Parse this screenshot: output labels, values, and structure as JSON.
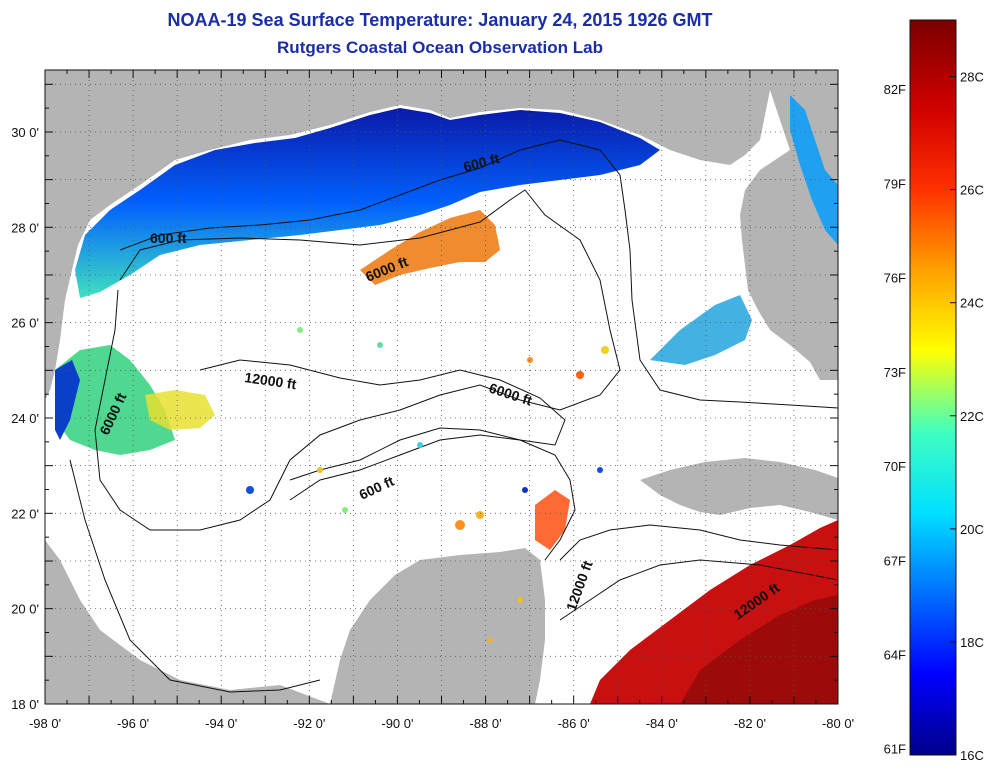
{
  "title": "NOAA-19 Sea Surface Temperature:  January 24, 2015 1926 GMT",
  "subtitle": "Rutgers Coastal Ocean Observation Lab",
  "longitude_labels": [
    "-98 0'",
    "-96 0'",
    "-94 0'",
    "-92 0'",
    "-90 0'",
    "-88 0'",
    "-86 0'",
    "-84 0'",
    "-82 0'",
    "-80 0'"
  ],
  "latitude_labels": [
    "30 0'",
    "28 0'",
    "26 0'",
    "24 0'",
    "22 0'",
    "20 0'",
    "18 0'"
  ],
  "longitude_values": [
    -98,
    -96,
    -94,
    -92,
    -90,
    -88,
    -86,
    -84,
    -82,
    -80
  ],
  "latitude_values": [
    30,
    28,
    26,
    24,
    22,
    20,
    18
  ],
  "contour_labels": {
    "c600_north": "600 ft",
    "c600_west": "600 ft",
    "c6000_north": "6000 ft",
    "c6000_west": "6000 ft",
    "c12000_west": "12000 ft",
    "c6000_south": "6000 ft",
    "c600_south": "600 ft",
    "c12000_channel": "12000 ft",
    "c12000_carib": "12000 ft"
  },
  "colorbar": {
    "fahrenheit_labels": [
      "82F",
      "79F",
      "76F",
      "73F",
      "70F",
      "67F",
      "64F",
      "61F"
    ],
    "fahrenheit_values": [
      82,
      79,
      76,
      73,
      70,
      67,
      64,
      61
    ],
    "celsius_labels": [
      "28C",
      "26C",
      "24C",
      "22C",
      "20C",
      "18C",
      "16C"
    ],
    "celsius_values": [
      28,
      26,
      24,
      22,
      20,
      18,
      16
    ],
    "min_c": 16,
    "max_c": 29,
    "colors": [
      "#00008a",
      "#0000ff",
      "#0070ff",
      "#00e0ff",
      "#40ffc0",
      "#ffff00",
      "#ffa000",
      "#ff3000",
      "#d00000",
      "#7a0000"
    ]
  },
  "colors": {
    "land": "#b4b4b4",
    "ocean_cloud": "#ffffff",
    "cold": "#0a1aa8",
    "warm": "#e07010",
    "hot": "#c01010"
  }
}
